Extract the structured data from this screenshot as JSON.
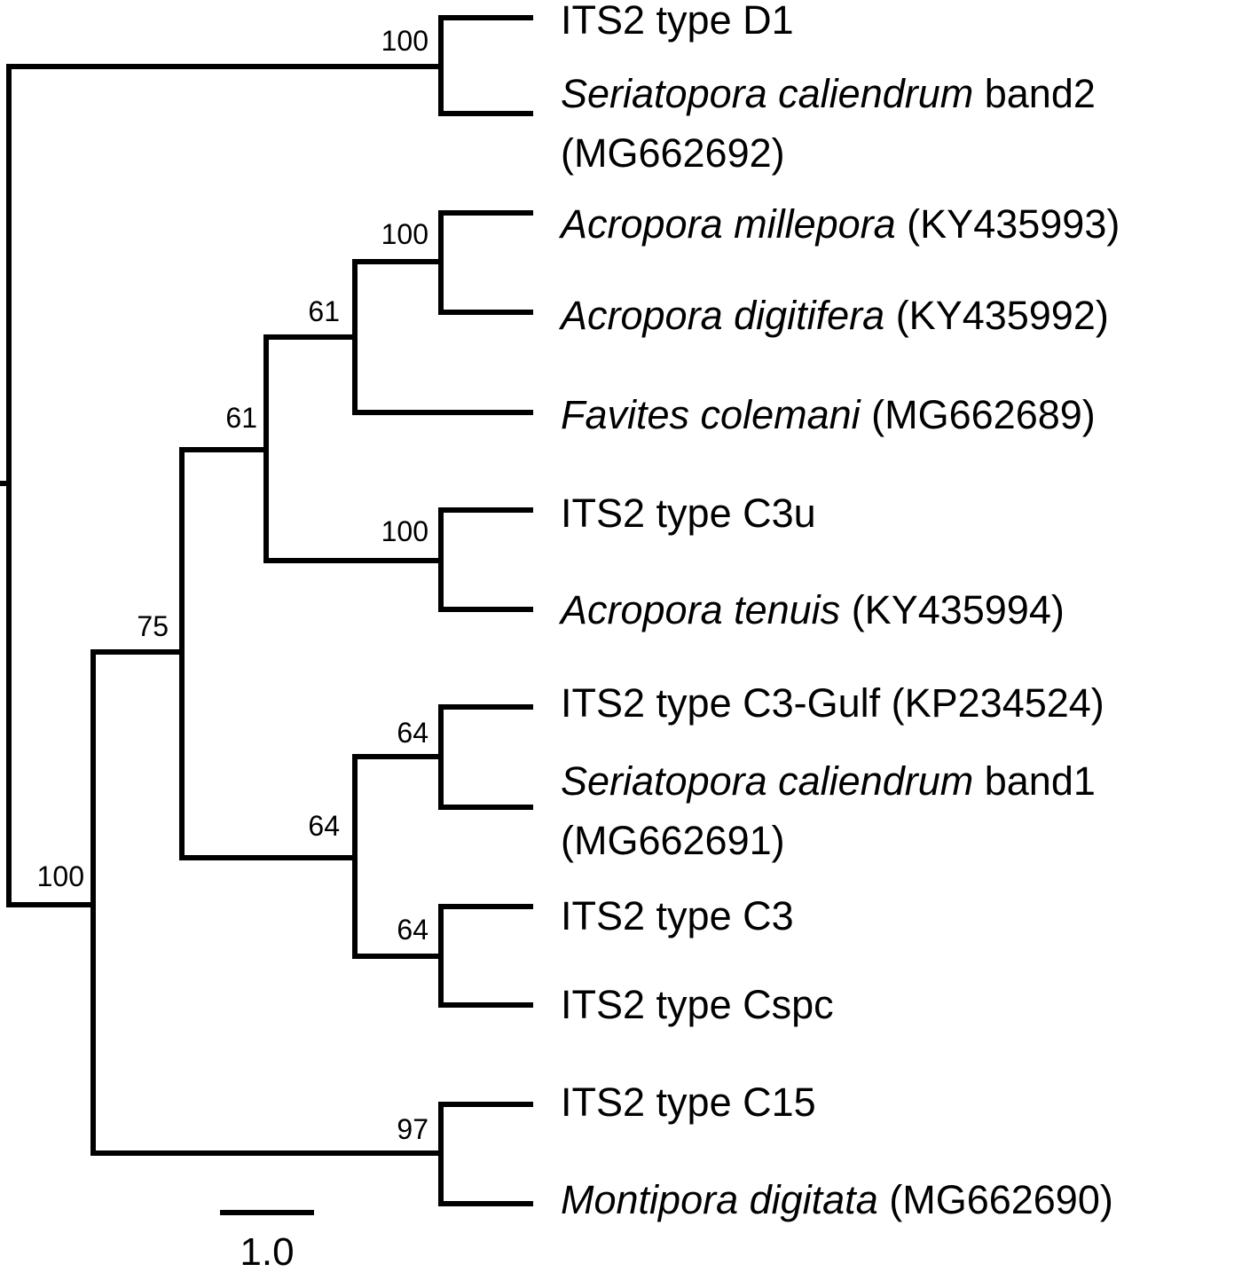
{
  "tree": {
    "line_color": "#000000",
    "leaves": [
      {
        "lines": [
          [
            {
              "t": "ITS2 type D1",
              "i": false
            }
          ]
        ]
      },
      {
        "lines": [
          [
            {
              "t": "Seriatopora caliendrum",
              "i": true
            },
            {
              "t": " band2",
              "i": false
            }
          ],
          [
            {
              "t": "(MG662692)",
              "i": false
            }
          ]
        ]
      },
      {
        "lines": [
          [
            {
              "t": "Acropora millepora",
              "i": true
            },
            {
              "t": " (KY435993)",
              "i": false
            }
          ]
        ]
      },
      {
        "lines": [
          [
            {
              "t": "Acropora digitifera",
              "i": true
            },
            {
              "t": " (KY435992)",
              "i": false
            }
          ]
        ]
      },
      {
        "lines": [
          [
            {
              "t": "Favites colemani",
              "i": true
            },
            {
              "t": " (MG662689)",
              "i": false
            }
          ]
        ]
      },
      {
        "lines": [
          [
            {
              "t": "ITS2 type C3u",
              "i": false
            }
          ]
        ]
      },
      {
        "lines": [
          [
            {
              "t": "Acropora tenuis",
              "i": true
            },
            {
              "t": " (KY435994)",
              "i": false
            }
          ]
        ]
      },
      {
        "lines": [
          [
            {
              "t": "ITS2 type C3-Gulf (KP234524)",
              "i": false
            }
          ]
        ]
      },
      {
        "lines": [
          [
            {
              "t": "Seriatopora caliendrum",
              "i": true
            },
            {
              "t": " band1",
              "i": false
            }
          ],
          [
            {
              "t": "(MG662691)",
              "i": false
            }
          ]
        ]
      },
      {
        "lines": [
          [
            {
              "t": "ITS2 type C3",
              "i": false
            }
          ]
        ]
      },
      {
        "lines": [
          [
            {
              "t": "ITS2 type Cspc",
              "i": false
            }
          ]
        ]
      },
      {
        "lines": [
          [
            {
              "t": "ITS2 type C15",
              "i": false
            }
          ]
        ]
      },
      {
        "lines": [
          [
            {
              "t": "Montipora digitata",
              "i": true
            },
            {
              "t": " (MG662690)",
              "i": false
            }
          ]
        ]
      }
    ],
    "support_values": {
      "D1_clade": "100",
      "millepora_digitifera": "100",
      "acropora_favites": "61",
      "acropora_c3u": "61",
      "c3u_tenuis": "100",
      "root_C_clade": "100",
      "c3_group": "75",
      "c3gulf_band1": "64",
      "c3_subgroup": "64",
      "c3_cspc": "64",
      "c15_montipora": "97"
    },
    "scale_bar": {
      "label": "1.0",
      "length": 1.0
    }
  }
}
